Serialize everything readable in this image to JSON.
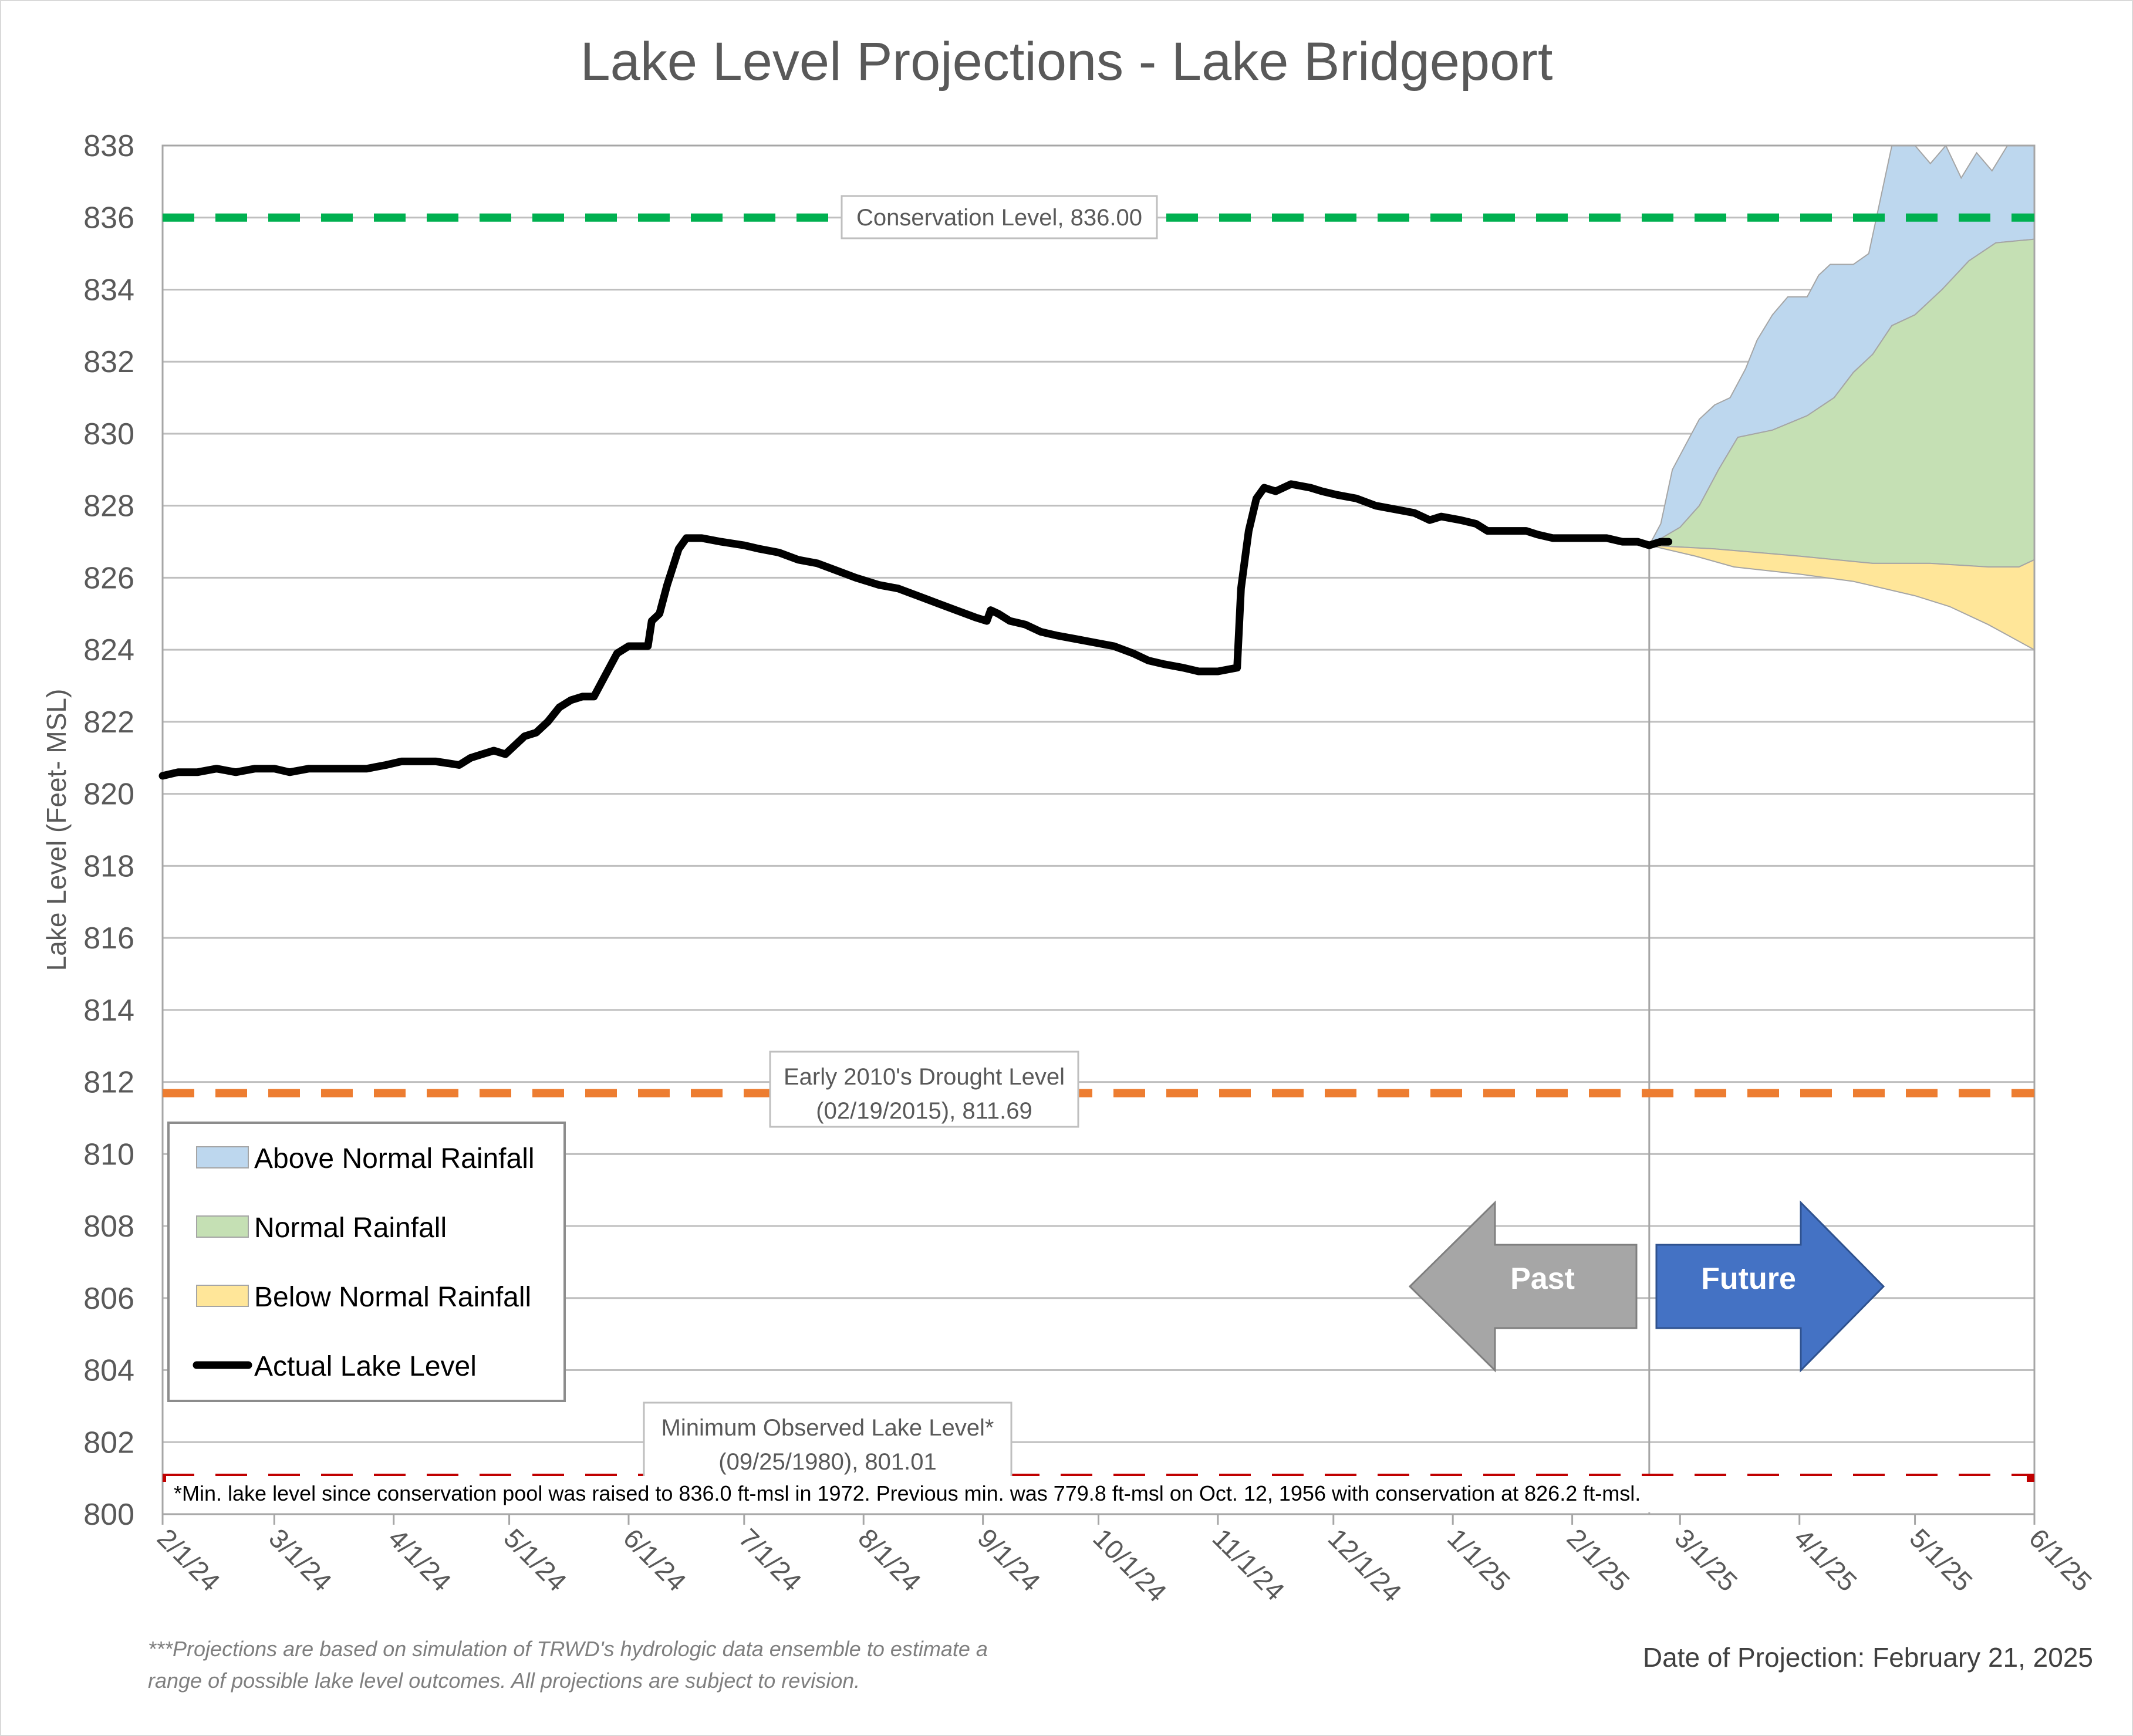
{
  "chart_data": {
    "type": "line",
    "title": "Lake Level Projections - Lake Bridgeport",
    "ylabel": "Lake Level (Feet- MSL)",
    "xlabel": "",
    "ylim": [
      800,
      838
    ],
    "yticks": [
      800,
      802,
      804,
      806,
      808,
      810,
      812,
      814,
      816,
      818,
      820,
      822,
      824,
      826,
      828,
      830,
      832,
      834,
      836,
      838
    ],
    "x_range": [
      "2024-02-01",
      "2025-06-01"
    ],
    "xticks": [
      {
        "date": "2024-02-01",
        "label": "2/1/24"
      },
      {
        "date": "2024-03-01",
        "label": "3/1/24"
      },
      {
        "date": "2024-04-01",
        "label": "4/1/24"
      },
      {
        "date": "2024-05-01",
        "label": "5/1/24"
      },
      {
        "date": "2024-06-01",
        "label": "6/1/24"
      },
      {
        "date": "2024-07-01",
        "label": "7/1/24"
      },
      {
        "date": "2024-08-01",
        "label": "8/1/24"
      },
      {
        "date": "2024-09-01",
        "label": "9/1/24"
      },
      {
        "date": "2024-10-01",
        "label": "10/1/24"
      },
      {
        "date": "2024-11-01",
        "label": "11/1/24"
      },
      {
        "date": "2024-12-01",
        "label": "12/1/24"
      },
      {
        "date": "2025-01-01",
        "label": "1/1/25"
      },
      {
        "date": "2025-02-01",
        "label": "2/1/25"
      },
      {
        "date": "2025-03-01",
        "label": "3/1/25"
      },
      {
        "date": "2025-04-01",
        "label": "4/1/25"
      },
      {
        "date": "2025-05-01",
        "label": "5/1/25"
      },
      {
        "date": "2025-06-01",
        "label": "6/1/25"
      }
    ],
    "grid": "horizontal",
    "legend_position": "bottom-left",
    "projection_date": "2025-02-21",
    "series": [
      {
        "name": "Actual Lake Level",
        "kind": "line",
        "color": "#000000",
        "points": [
          [
            "2024-02-01",
            820.5
          ],
          [
            "2024-02-05",
            820.6
          ],
          [
            "2024-02-10",
            820.6
          ],
          [
            "2024-02-15",
            820.7
          ],
          [
            "2024-02-20",
            820.6
          ],
          [
            "2024-02-25",
            820.7
          ],
          [
            "2024-03-01",
            820.7
          ],
          [
            "2024-03-05",
            820.6
          ],
          [
            "2024-03-10",
            820.7
          ],
          [
            "2024-03-15",
            820.7
          ],
          [
            "2024-03-20",
            820.7
          ],
          [
            "2024-03-25",
            820.7
          ],
          [
            "2024-03-30",
            820.8
          ],
          [
            "2024-04-03",
            820.9
          ],
          [
            "2024-04-08",
            820.9
          ],
          [
            "2024-04-12",
            820.9
          ],
          [
            "2024-04-18",
            820.8
          ],
          [
            "2024-04-21",
            821.0
          ],
          [
            "2024-04-24",
            821.1
          ],
          [
            "2024-04-27",
            821.2
          ],
          [
            "2024-04-30",
            821.1
          ],
          [
            "2024-05-02",
            821.3
          ],
          [
            "2024-05-05",
            821.6
          ],
          [
            "2024-05-08",
            821.7
          ],
          [
            "2024-05-11",
            822.0
          ],
          [
            "2024-05-14",
            822.4
          ],
          [
            "2024-05-17",
            822.6
          ],
          [
            "2024-05-20",
            822.7
          ],
          [
            "2024-05-23",
            822.7
          ],
          [
            "2024-05-26",
            823.3
          ],
          [
            "2024-05-29",
            823.9
          ],
          [
            "2024-06-01",
            824.1
          ],
          [
            "2024-06-04",
            824.1
          ],
          [
            "2024-06-06",
            824.1
          ],
          [
            "2024-06-07",
            824.8
          ],
          [
            "2024-06-09",
            825.0
          ],
          [
            "2024-06-11",
            825.8
          ],
          [
            "2024-06-14",
            826.8
          ],
          [
            "2024-06-16",
            827.1
          ],
          [
            "2024-06-20",
            827.1
          ],
          [
            "2024-06-25",
            827.0
          ],
          [
            "2024-07-01",
            826.9
          ],
          [
            "2024-07-05",
            826.8
          ],
          [
            "2024-07-10",
            826.7
          ],
          [
            "2024-07-15",
            826.5
          ],
          [
            "2024-07-20",
            826.4
          ],
          [
            "2024-07-25",
            826.2
          ],
          [
            "2024-07-30",
            826.0
          ],
          [
            "2024-08-05",
            825.8
          ],
          [
            "2024-08-10",
            825.7
          ],
          [
            "2024-08-15",
            825.5
          ],
          [
            "2024-08-20",
            825.3
          ],
          [
            "2024-08-25",
            825.1
          ],
          [
            "2024-08-30",
            824.9
          ],
          [
            "2024-09-02",
            824.8
          ],
          [
            "2024-09-03",
            825.1
          ],
          [
            "2024-09-05",
            825.0
          ],
          [
            "2024-09-08",
            824.8
          ],
          [
            "2024-09-12",
            824.7
          ],
          [
            "2024-09-16",
            824.5
          ],
          [
            "2024-09-20",
            824.4
          ],
          [
            "2024-09-25",
            824.3
          ],
          [
            "2024-09-30",
            824.2
          ],
          [
            "2024-10-05",
            824.1
          ],
          [
            "2024-10-10",
            823.9
          ],
          [
            "2024-10-14",
            823.7
          ],
          [
            "2024-10-18",
            823.6
          ],
          [
            "2024-10-23",
            823.5
          ],
          [
            "2024-10-27",
            823.4
          ],
          [
            "2024-11-01",
            823.4
          ],
          [
            "2024-11-06",
            823.5
          ],
          [
            "2024-11-07",
            825.7
          ],
          [
            "2024-11-08",
            826.5
          ],
          [
            "2024-11-09",
            827.3
          ],
          [
            "2024-11-11",
            828.2
          ],
          [
            "2024-11-13",
            828.5
          ],
          [
            "2024-11-16",
            828.4
          ],
          [
            "2024-11-20",
            828.6
          ],
          [
            "2024-11-25",
            828.5
          ],
          [
            "2024-11-28",
            828.4
          ],
          [
            "2024-12-02",
            828.3
          ],
          [
            "2024-12-07",
            828.2
          ],
          [
            "2024-12-12",
            828.0
          ],
          [
            "2024-12-17",
            827.9
          ],
          [
            "2024-12-22",
            827.8
          ],
          [
            "2024-12-26",
            827.6
          ],
          [
            "2024-12-29",
            827.7
          ],
          [
            "2025-01-03",
            827.6
          ],
          [
            "2025-01-07",
            827.5
          ],
          [
            "2025-01-10",
            827.3
          ],
          [
            "2025-01-15",
            827.3
          ],
          [
            "2025-01-20",
            827.3
          ],
          [
            "2025-01-23",
            827.2
          ],
          [
            "2025-01-27",
            827.1
          ],
          [
            "2025-02-01",
            827.1
          ],
          [
            "2025-02-06",
            827.1
          ],
          [
            "2025-02-10",
            827.1
          ],
          [
            "2025-02-14",
            827.0
          ],
          [
            "2025-02-18",
            827.0
          ],
          [
            "2025-02-21",
            826.9
          ],
          [
            "2025-02-24",
            827.0
          ],
          [
            "2025-02-26",
            827.0
          ]
        ]
      },
      {
        "name": "Above Normal Rainfall",
        "kind": "area",
        "color": "#bdd7ee",
        "upper": [
          [
            "2025-02-21",
            826.9
          ],
          [
            "2025-02-24",
            827.5
          ],
          [
            "2025-02-27",
            829.0
          ],
          [
            "2025-03-03",
            829.8
          ],
          [
            "2025-03-06",
            830.4
          ],
          [
            "2025-03-10",
            830.8
          ],
          [
            "2025-03-14",
            831.0
          ],
          [
            "2025-03-18",
            831.8
          ],
          [
            "2025-03-21",
            832.6
          ],
          [
            "2025-03-25",
            833.3
          ],
          [
            "2025-03-29",
            833.8
          ],
          [
            "2025-04-03",
            833.8
          ],
          [
            "2025-04-06",
            834.4
          ],
          [
            "2025-04-09",
            834.7
          ],
          [
            "2025-04-15",
            834.7
          ],
          [
            "2025-04-19",
            835.0
          ],
          [
            "2025-04-22",
            836.5
          ],
          [
            "2025-04-25",
            838.0
          ],
          [
            "2025-05-01",
            838.0
          ],
          [
            "2025-05-05",
            837.5
          ],
          [
            "2025-05-09",
            838.0
          ],
          [
            "2025-05-13",
            837.1
          ],
          [
            "2025-05-17",
            837.8
          ],
          [
            "2025-05-21",
            837.3
          ],
          [
            "2025-05-25",
            838.0
          ],
          [
            "2025-06-01",
            838.0
          ]
        ],
        "lower": [
          [
            "2025-02-21",
            826.9
          ],
          [
            "2025-03-01",
            827.4
          ],
          [
            "2025-03-06",
            828.0
          ],
          [
            "2025-03-11",
            829.0
          ],
          [
            "2025-03-16",
            829.9
          ],
          [
            "2025-03-25",
            830.1
          ],
          [
            "2025-04-03",
            830.5
          ],
          [
            "2025-04-10",
            831.0
          ],
          [
            "2025-04-15",
            831.7
          ],
          [
            "2025-04-20",
            832.2
          ],
          [
            "2025-04-25",
            833.0
          ],
          [
            "2025-05-01",
            833.3
          ],
          [
            "2025-05-08",
            834.0
          ],
          [
            "2025-05-15",
            834.8
          ],
          [
            "2025-05-22",
            835.3
          ],
          [
            "2025-06-01",
            835.4
          ]
        ]
      },
      {
        "name": "Normal Rainfall",
        "kind": "area",
        "color": "#c5e0b4",
        "upper": [
          [
            "2025-02-21",
            826.9
          ],
          [
            "2025-03-01",
            827.4
          ],
          [
            "2025-03-06",
            828.0
          ],
          [
            "2025-03-11",
            829.0
          ],
          [
            "2025-03-16",
            829.9
          ],
          [
            "2025-03-25",
            830.1
          ],
          [
            "2025-04-03",
            830.5
          ],
          [
            "2025-04-10",
            831.0
          ],
          [
            "2025-04-15",
            831.7
          ],
          [
            "2025-04-20",
            832.2
          ],
          [
            "2025-04-25",
            833.0
          ],
          [
            "2025-05-01",
            833.3
          ],
          [
            "2025-05-08",
            834.0
          ],
          [
            "2025-05-15",
            834.8
          ],
          [
            "2025-05-22",
            835.3
          ],
          [
            "2025-06-01",
            835.4
          ]
        ],
        "lower": [
          [
            "2025-02-21",
            826.9
          ],
          [
            "2025-03-10",
            826.8
          ],
          [
            "2025-04-01",
            826.6
          ],
          [
            "2025-04-20",
            826.4
          ],
          [
            "2025-05-05",
            826.4
          ],
          [
            "2025-05-20",
            826.3
          ],
          [
            "2025-05-28",
            826.3
          ],
          [
            "2025-06-01",
            826.5
          ]
        ]
      },
      {
        "name": "Below Normal Rainfall",
        "kind": "area",
        "color": "#ffe699",
        "upper": [
          [
            "2025-02-21",
            826.9
          ],
          [
            "2025-03-10",
            826.8
          ],
          [
            "2025-04-01",
            826.6
          ],
          [
            "2025-04-20",
            826.4
          ],
          [
            "2025-05-05",
            826.4
          ],
          [
            "2025-05-20",
            826.3
          ],
          [
            "2025-05-28",
            826.3
          ],
          [
            "2025-06-01",
            826.5
          ]
        ],
        "lower": [
          [
            "2025-02-21",
            826.9
          ],
          [
            "2025-03-05",
            826.6
          ],
          [
            "2025-03-15",
            826.3
          ],
          [
            "2025-04-01",
            826.1
          ],
          [
            "2025-04-15",
            825.9
          ],
          [
            "2025-05-01",
            825.5
          ],
          [
            "2025-05-10",
            825.2
          ],
          [
            "2025-05-20",
            824.7
          ],
          [
            "2025-06-01",
            824.0
          ]
        ]
      }
    ],
    "reference_lines": [
      {
        "name": "conservation",
        "value": 836.0,
        "color": "#00b050",
        "label": "Conservation Level, 836.00"
      },
      {
        "name": "drought",
        "value": 811.69,
        "color": "#ed7d31",
        "label_line1": "Early 2010's Drought Level",
        "label_line2": "(02/19/2015), 811.69"
      },
      {
        "name": "minimum",
        "value": 801.01,
        "color": "#c00000",
        "label_line1": "Minimum Observed Lake Level*",
        "label_line2": "(09/25/1980), 801.01"
      }
    ],
    "legend": [
      {
        "label": "Above Normal Rainfall",
        "swatch": "fill",
        "color": "#bdd7ee"
      },
      {
        "label": "Normal Rainfall",
        "swatch": "fill",
        "color": "#c5e0b4"
      },
      {
        "label": "Below Normal Rainfall",
        "swatch": "fill",
        "color": "#ffe699"
      },
      {
        "label": "Actual Lake Level",
        "swatch": "line",
        "color": "#000000"
      }
    ],
    "arrows": {
      "past": {
        "label": "Past",
        "color": "#a6a6a6"
      },
      "future": {
        "label": "Future",
        "color": "#4472c4"
      }
    },
    "footnote_inside": "*Min. lake level since conservation pool was raised to 836.0 ft-msl in 1972.  Previous min. was 779.8 ft-msl on Oct. 12, 1956 with conservation at 826.2 ft-msl.",
    "disclaimer_line1": "***Projections are based on simulation of TRWD's hydrologic data ensemble to estimate a",
    "disclaimer_line2": "range of possible lake level outcomes.  All projections are subject to revision.",
    "projection_date_label": "Date of Projection: February 21, 2025"
  }
}
